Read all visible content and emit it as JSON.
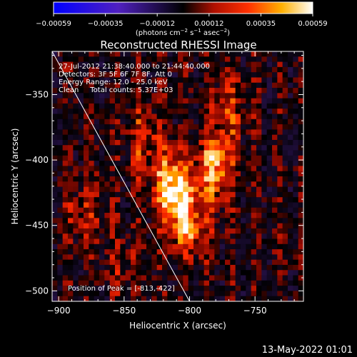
{
  "chart_data": {
    "type": "heatmap",
    "title": "Reconstructed RHESSI Image",
    "xlabel": "Heliocentric X (arcsec)",
    "ylabel": "Heliocentric Y (arcsec)",
    "xlim": [
      -905,
      -713
    ],
    "ylim": [
      -508,
      -317
    ],
    "x_ticks": [
      -900,
      -850,
      -800,
      -750
    ],
    "y_ticks": [
      -500,
      -450,
      -400,
      -350
    ],
    "colorbar": {
      "ticks": [
        "-0.00059",
        "-0.00035",
        "-0.00012",
        "0.00012",
        "0.00035",
        "0.00059"
      ],
      "unit_label": "(photons cm^-2 s^-1 asec^-2)",
      "range": [
        -0.00059,
        0.00059
      ]
    },
    "info_lines": [
      "27-Jul-2012 21:38:40.000 to 21:44:40.000",
      "Detectors: 3F 5F 6F 7F 8F, Att 0",
      "Energy Range: 12.0 - 25.0 keV",
      "Clean     Total counts: 5.37E+03"
    ],
    "peak_label": "Position of Peak = [-813,-422]",
    "peak": [
      -813,
      -422
    ],
    "sources": [
      {
        "x": -813,
        "y": -422,
        "peak": 0.00059
      },
      {
        "x": -780,
        "y": -405,
        "peak": 0.00045
      },
      {
        "x": -800,
        "y": -450,
        "peak": 0.00038
      },
      {
        "x": -770,
        "y": -360,
        "peak": 0.00022
      },
      {
        "x": -835,
        "y": -385,
        "peak": 0.00024
      },
      {
        "x": -880,
        "y": -440,
        "peak": 0.00018
      },
      {
        "x": -850,
        "y": -480,
        "peak": 0.00015
      }
    ],
    "limb_line": [
      [
        -905,
        -317
      ],
      [
        -800,
        -508
      ]
    ]
  },
  "footer": {
    "timestamp": "13-May-2022 01:01"
  }
}
